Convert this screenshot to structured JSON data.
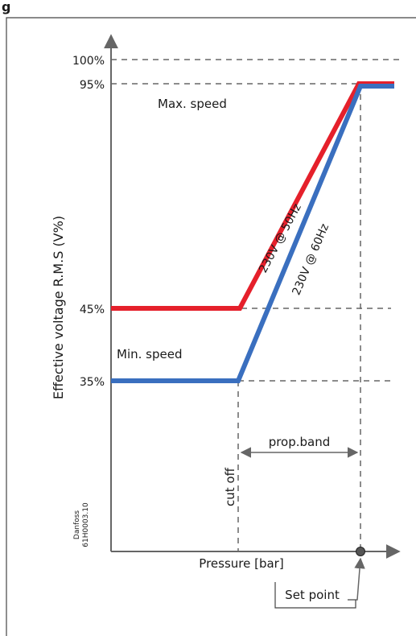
{
  "header": {
    "fig_label": "g"
  },
  "diagram": {
    "ylabel": "Effective voltage R.M.S (V%)",
    "xlabel": "Pressure [bar]",
    "y_ticks": [
      "100%",
      "95%",
      "45%",
      "35%"
    ],
    "annotations": {
      "max_speed": "Max. speed",
      "min_speed": "Min. speed",
      "cut_off": "cut off",
      "prop_band": "prop.band",
      "set_point": "Set point"
    },
    "series": [
      {
        "name": "230V @ 50Hz",
        "color": "#e5202b",
        "min_level_pct": 45,
        "max_level_pct": 95
      },
      {
        "name": "230V @ 60Hz",
        "color": "#3a6fbf",
        "min_level_pct": 35,
        "max_level_pct": 95
      }
    ],
    "credit": {
      "line1": "Danfoss",
      "line2": "61H0003.10"
    }
  },
  "colors": {
    "axis": "#666666",
    "dash": "#666666",
    "frame": "#444444",
    "point": "#555555"
  }
}
